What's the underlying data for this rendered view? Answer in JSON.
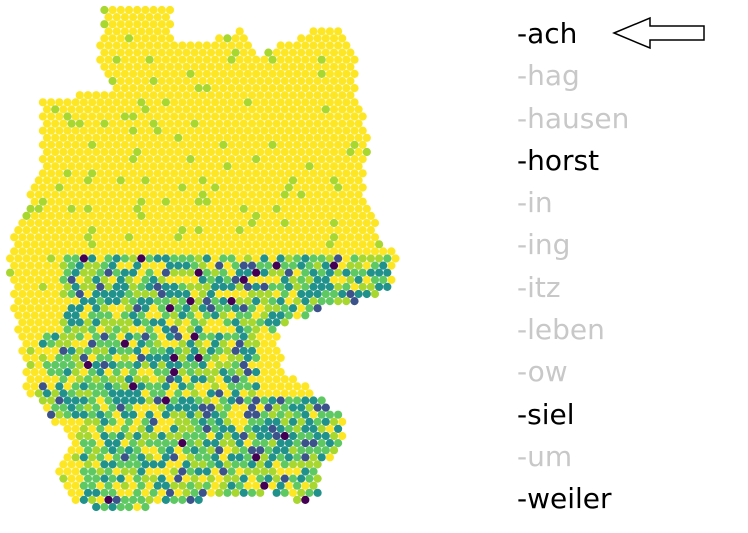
{
  "map": {
    "icon": "germany-hexbin-map",
    "palette": [
      "#440154",
      "#3b528b",
      "#21918c",
      "#5ec962",
      "#a8d72f",
      "#fde725"
    ],
    "background_color": "#ffffff"
  },
  "suffixes": [
    {
      "label": "-ach",
      "active": true
    },
    {
      "label": "-hag",
      "active": false
    },
    {
      "label": "-hausen",
      "active": false
    },
    {
      "label": "-horst",
      "active": true
    },
    {
      "label": "-in",
      "active": false
    },
    {
      "label": "-ing",
      "active": false
    },
    {
      "label": "-itz",
      "active": false
    },
    {
      "label": "-leben",
      "active": false
    },
    {
      "label": "-ow",
      "active": false
    },
    {
      "label": "-siel",
      "active": true
    },
    {
      "label": "-um",
      "active": false
    },
    {
      "label": "-weiler",
      "active": true
    }
  ],
  "colors": {
    "active_text": "#000000",
    "inactive_text": "#c8c8c8"
  },
  "pointer": {
    "icon": "left-arrow-icon",
    "points_to": "-ach"
  }
}
